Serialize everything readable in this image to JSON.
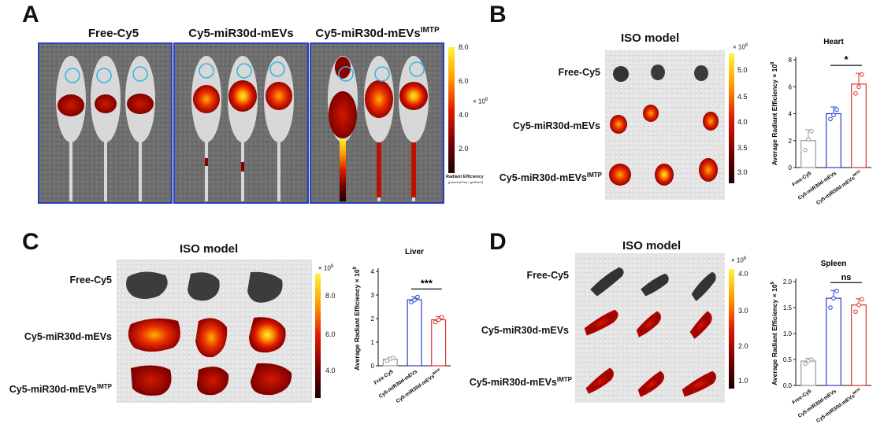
{
  "panelA": {
    "letter": "A",
    "groups": [
      {
        "main": "Free-Cy5",
        "sup": ""
      },
      {
        "main": "Cy5-miR30d-mEVs",
        "sup": ""
      },
      {
        "main": "Cy5-miR30d-mEVs",
        "sup": "IMTP"
      }
    ],
    "colorbar": {
      "ticks": [
        "8.0",
        "6.0",
        "4.0",
        "2.0"
      ],
      "exp_base": "× 10",
      "exp_power": "8",
      "label": "Radiant Efficiency",
      "units": "(p/sec/cm²/sr) / (µW/cm²)"
    }
  },
  "panelB": {
    "letter": "B",
    "model": "ISO model",
    "rows": [
      {
        "main": "Free-Cy5",
        "sup": ""
      },
      {
        "main": "Cy5-miR30d-mEVs",
        "sup": ""
      },
      {
        "main": "Cy5-miR30d-mEVs",
        "sup": "IMTP"
      }
    ],
    "colorbar": {
      "ticks": [
        "5.0",
        "4.5",
        "4.0",
        "3.5",
        "3.0"
      ],
      "exp_base": "× 10",
      "exp_power": "8"
    }
  },
  "panelC": {
    "letter": "C",
    "model": "ISO model",
    "rows": [
      {
        "main": "Free-Cy5",
        "sup": ""
      },
      {
        "main": "Cy5-miR30d-mEVs",
        "sup": ""
      },
      {
        "main": "Cy5-miR30d-mEVs",
        "sup": "IMTP"
      }
    ],
    "colorbar": {
      "ticks": [
        "8.0",
        "6.0",
        "4.0"
      ],
      "exp_base": "× 10",
      "exp_power": "8"
    }
  },
  "panelD": {
    "letter": "D",
    "model": "ISO model",
    "rows": [
      {
        "main": "Free-Cy5",
        "sup": ""
      },
      {
        "main": "Cy5-miR30d-mEVs",
        "sup": ""
      },
      {
        "main": "Cy5-miR30d-mEVs",
        "sup": "IMTP"
      }
    ],
    "colorbar": {
      "ticks": [
        "4.0",
        "3.0",
        "2.0",
        "1.0"
      ],
      "exp_base": "× 10",
      "exp_power": "8"
    }
  },
  "chart_data": [
    {
      "type": "bar",
      "title": "Heart",
      "categories": [
        "Free-Cy5",
        "Cy5-miR30d-mEVs",
        "Cy5-miR30d-mEVs"
      ],
      "category_sups": [
        "",
        "",
        "IMTP"
      ],
      "values": [
        2.0,
        4.0,
        6.2
      ],
      "errors": [
        0.8,
        0.5,
        0.8
      ],
      "points": [
        [
          1.3,
          2.1,
          2.7
        ],
        [
          3.6,
          3.9,
          4.3
        ],
        [
          5.5,
          6.0,
          6.9
        ]
      ],
      "colors": [
        "#9a9a9a",
        "#2a3fd0",
        "#e03030"
      ],
      "ylabel": "Average Radiant Efficiency",
      "ylabel_exp_base": "× 10",
      "ylabel_exp_power": "8",
      "ylim": [
        0,
        8
      ],
      "yticks": [
        0,
        2,
        4,
        6,
        8
      ],
      "significance": {
        "between": [
          1,
          2
        ],
        "label": "*"
      }
    },
    {
      "type": "bar",
      "title": "Liver",
      "categories": [
        "Free-Cy5",
        "Cy5-miR30d-mEVs",
        "Cy5-miR30d-mEVs"
      ],
      "category_sups": [
        "",
        "",
        "IMTP"
      ],
      "values": [
        0.28,
        2.8,
        1.95
      ],
      "errors": [
        0.06,
        0.12,
        0.14
      ],
      "points": [
        [
          0.22,
          0.3,
          0.33
        ],
        [
          2.7,
          2.78,
          2.92
        ],
        [
          1.85,
          1.95,
          2.06
        ]
      ],
      "colors": [
        "#9a9a9a",
        "#2a3fd0",
        "#e03030"
      ],
      "ylabel": "Average Radiant Efficiency",
      "ylabel_exp_base": "× 10",
      "ylabel_exp_power": "9",
      "ylim": [
        0,
        4
      ],
      "yticks": [
        0,
        1,
        2,
        3,
        4
      ],
      "significance": {
        "between": [
          1,
          2
        ],
        "label": "***"
      }
    },
    {
      "type": "bar",
      "title": "Spleen",
      "categories": [
        "Free-Cy5",
        "Cy5-miR30d-mEVs",
        "Cy5-miR30d-mEVs"
      ],
      "category_sups": [
        "",
        "",
        "IMTP"
      ],
      "values": [
        0.47,
        1.68,
        1.55
      ],
      "errors": [
        0.05,
        0.15,
        0.12
      ],
      "points": [
        [
          0.42,
          0.47,
          0.5
        ],
        [
          1.5,
          1.68,
          1.82
        ],
        [
          1.42,
          1.55,
          1.66
        ]
      ],
      "colors": [
        "#9a9a9a",
        "#2a3fd0",
        "#e03030"
      ],
      "ylabel": "Average Radiant Efficiency",
      "ylabel_exp_base": "× 10",
      "ylabel_exp_power": "9",
      "ylim": [
        0,
        2.0
      ],
      "yticks": [
        0,
        0.5,
        1.0,
        1.5,
        2.0
      ],
      "ytick_labels": [
        "0.0",
        "0.5",
        "1.0",
        "1.5",
        "2.0"
      ],
      "significance": {
        "between": [
          1,
          2
        ],
        "label": "ns"
      }
    }
  ]
}
